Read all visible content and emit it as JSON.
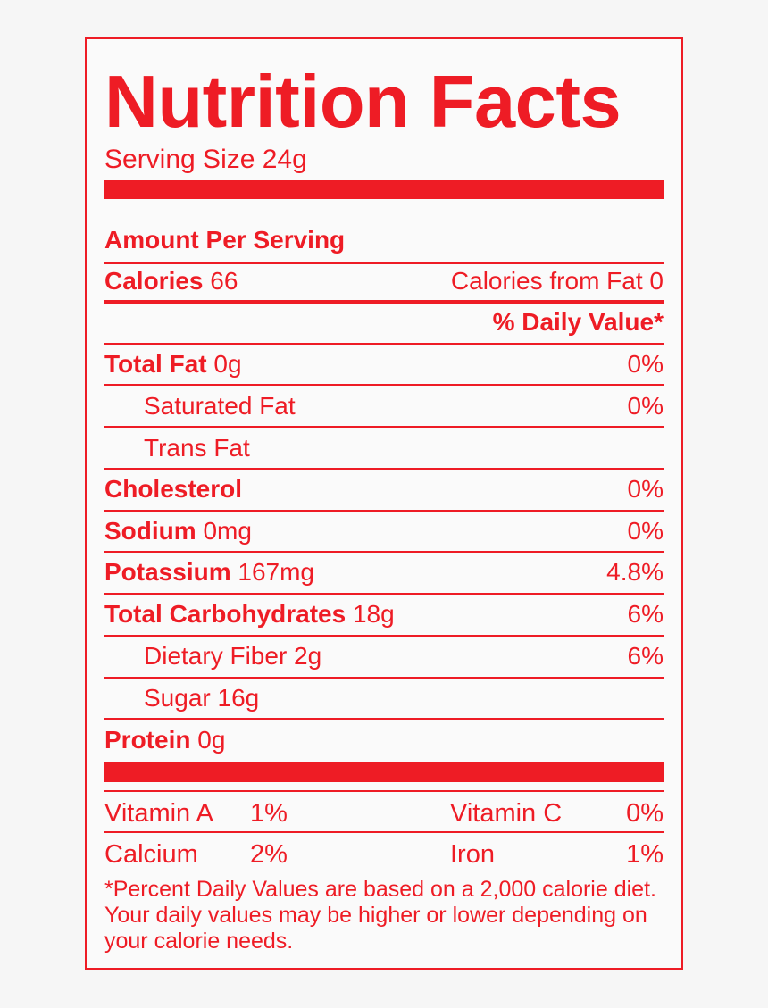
{
  "title": "Nutrition Facts",
  "serving_size": "Serving Size 24g",
  "amount_per_serving": "Amount Per Serving",
  "calories": {
    "label": "Calories",
    "value": "66",
    "from_fat": "Calories from Fat 0"
  },
  "daily_value_header": "% Daily Value*",
  "nutrients": [
    {
      "label": "Total Fat",
      "amount": "0g",
      "dv": "0%"
    },
    {
      "label": "Saturated Fat",
      "amount": "",
      "dv": "0%"
    },
    {
      "label": "Trans Fat",
      "amount": "",
      "dv": ""
    },
    {
      "label": "Cholesterol",
      "amount": "",
      "dv": "0%"
    },
    {
      "label": "Sodium",
      "amount": "0mg",
      "dv": "0%"
    },
    {
      "label": "Potassium",
      "amount": "167mg",
      "dv": "4.8%"
    },
    {
      "label": "Total Carbohydrates",
      "amount": "18g",
      "dv": "6%"
    },
    {
      "label": "Dietary Fiber 2g",
      "amount": "",
      "dv": "6%"
    },
    {
      "label": "Sugar 16g",
      "amount": "",
      "dv": ""
    },
    {
      "label": "Protein",
      "amount": "0g",
      "dv": ""
    }
  ],
  "vitamins": [
    {
      "name": "Vitamin A",
      "value": "1%"
    },
    {
      "name": "Vitamin C",
      "value": "0%"
    },
    {
      "name": "Calcium",
      "value": "2%"
    },
    {
      "name": "Iron",
      "value": "1%"
    }
  ],
  "footnote": "*Percent Daily Values are based on a 2,000 calorie diet. Your daily values may be higher or lower depending on your calorie needs.",
  "colors": {
    "accent": "#ee1c25",
    "background": "#f6f6f6"
  }
}
